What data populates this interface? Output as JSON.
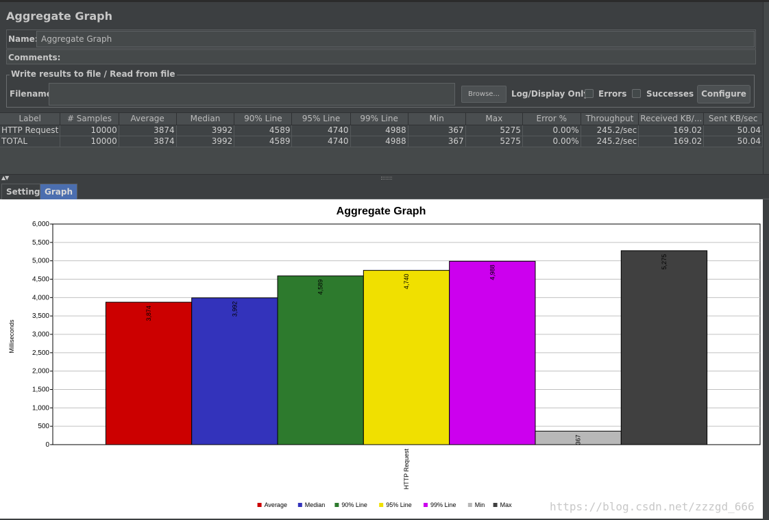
{
  "panel": {
    "title": "Aggregate Graph",
    "name_label": "Name:",
    "name_value": "Aggregate Graph",
    "comments_label": "Comments:"
  },
  "file_section": {
    "legend": "Write results to file / Read from file",
    "filename_label": "Filename",
    "filename_value": "",
    "browse_label": "Browse...",
    "log_display_label": "Log/Display Only:",
    "errors_label": "Errors",
    "errors_checked": false,
    "successes_label": "Successes",
    "successes_checked": false,
    "configure_label": "Configure"
  },
  "results_table": {
    "columns": [
      "Label",
      "# Samples",
      "Average",
      "Median",
      "90% Line",
      "95% Line",
      "99% Line",
      "Min",
      "Max",
      "Error %",
      "Throughput",
      "Received KB/...",
      "Sent KB/sec"
    ],
    "rows": [
      [
        "HTTP Request",
        "10000",
        "3874",
        "3992",
        "4589",
        "4740",
        "4988",
        "367",
        "5275",
        "0.00%",
        "245.2/sec",
        "169.02",
        "50.04"
      ],
      [
        "TOTAL",
        "10000",
        "3874",
        "3992",
        "4589",
        "4740",
        "4988",
        "367",
        "5275",
        "0.00%",
        "245.2/sec",
        "169.02",
        "50.04"
      ]
    ]
  },
  "tabs": [
    {
      "label": "Settings",
      "active": false
    },
    {
      "label": "Graph",
      "active": true
    }
  ],
  "chart_data": {
    "type": "bar",
    "title": "Aggregate Graph",
    "ylabel": "Milliseconds",
    "xlabel": "",
    "ylim": [
      0,
      6000
    ],
    "ytick_step": 500,
    "categories": [
      "HTTP Request"
    ],
    "series": [
      {
        "name": "Average",
        "values": [
          3874
        ],
        "color": "#cc0000",
        "label": "3,874"
      },
      {
        "name": "Median",
        "values": [
          3992
        ],
        "color": "#3333bb",
        "label": "3,992"
      },
      {
        "name": "90% Line",
        "values": [
          4589
        ],
        "color": "#2d7a2d",
        "label": "4,589"
      },
      {
        "name": "95% Line",
        "values": [
          4740
        ],
        "color": "#f0e000",
        "label": "4,740"
      },
      {
        "name": "99% Line",
        "values": [
          4988
        ],
        "color": "#cc00ee",
        "label": "4,988"
      },
      {
        "name": "Min",
        "values": [
          367
        ],
        "color": "#b8b8b8",
        "label": "367"
      },
      {
        "name": "Max",
        "values": [
          5275
        ],
        "color": "#404040",
        "label": "5,275"
      }
    ],
    "grid": true,
    "legend_position": "bottom"
  },
  "watermark": "https://blog.csdn.net/zzzgd_666"
}
